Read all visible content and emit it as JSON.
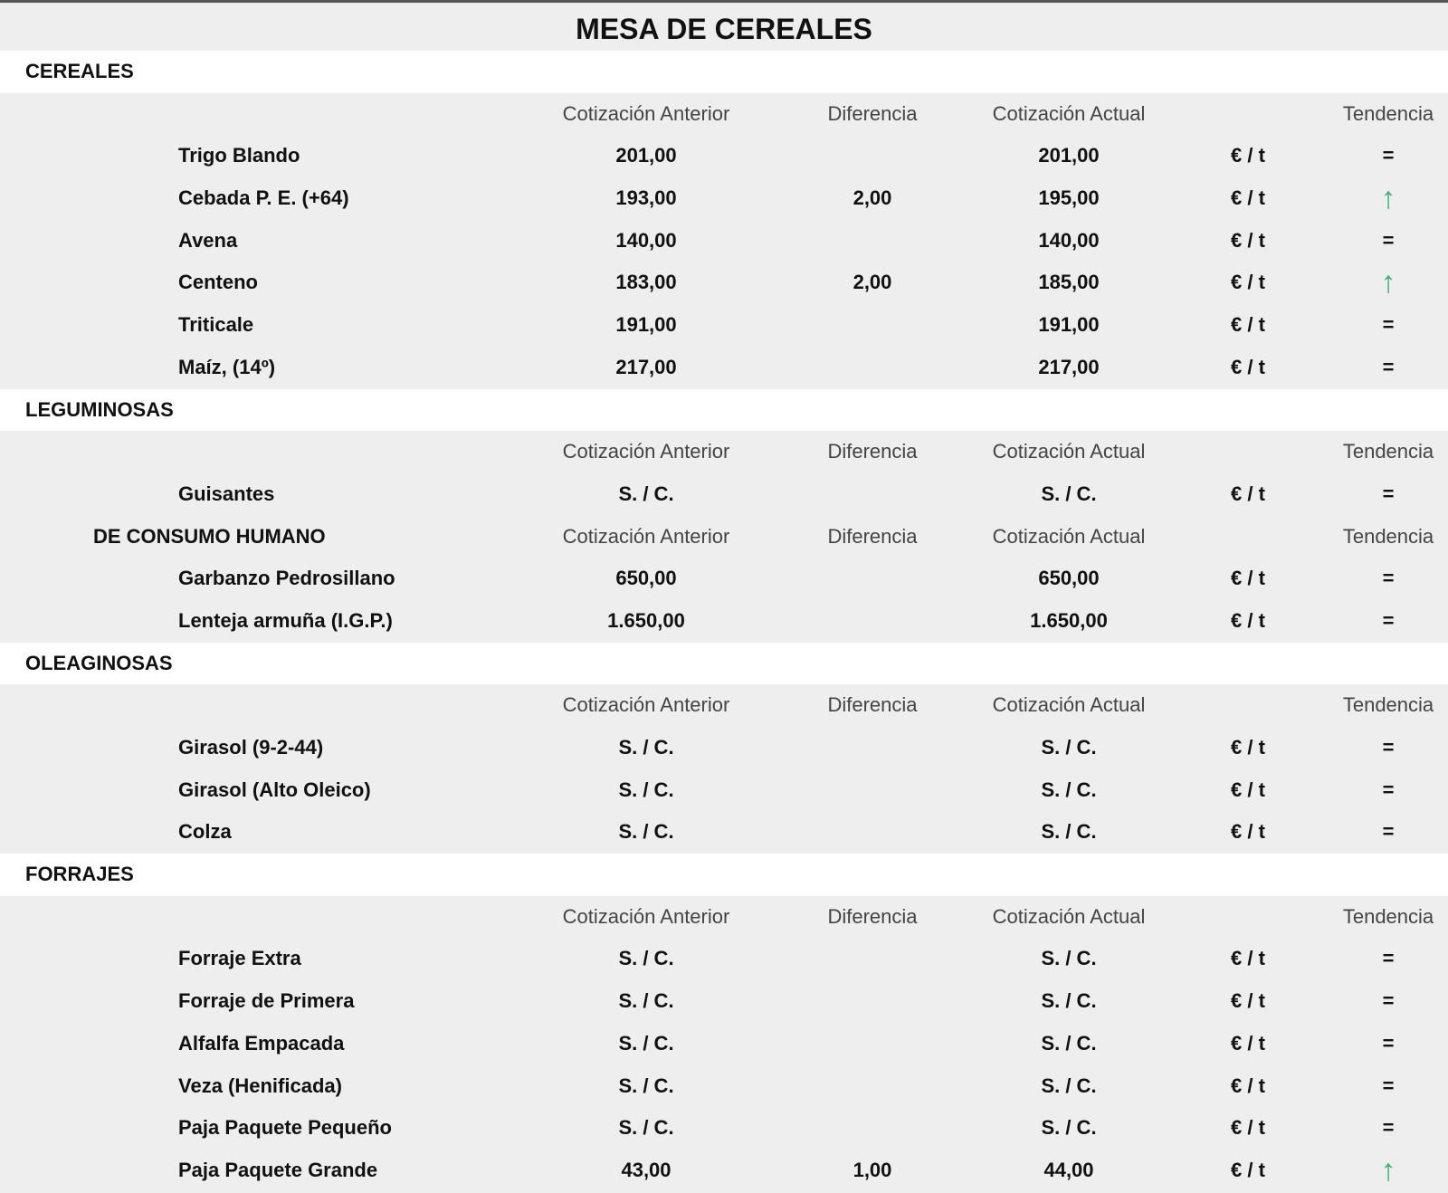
{
  "title": "MESA DE CEREALES",
  "sections": [
    {
      "title": "CEREALES",
      "groups": [
        {
          "headers": [
            "Cotización Anterior",
            "Diferencia",
            "Cotización Actual",
            "Tendencia"
          ],
          "rows": [
            {
              "name": "Trigo Blando",
              "anterior": "201,00",
              "actual": "201,00",
              "unit": "€ / t",
              "trend": "="
            },
            {
              "name": "Cebada P. E. (+64)",
              "anterior": "193,00",
              "diferencia": "2,00",
              "actual": "195,00",
              "unit": "€ / t",
              "trend": "↑"
            },
            {
              "name": "Avena",
              "anterior": "140,00",
              "actual": "140,00",
              "unit": "€ / t",
              "trend": "="
            },
            {
              "name": "Centeno",
              "anterior": "183,00",
              "diferencia": "2,00",
              "actual": "185,00",
              "unit": "€ / t",
              "trend": "↑"
            },
            {
              "name": "Triticale",
              "anterior": "191,00",
              "actual": "191,00",
              "unit": "€ / t",
              "trend": "="
            },
            {
              "name": "Maíz, (14º)",
              "anterior": "217,00",
              "actual": "217,00",
              "unit": "€ / t",
              "trend": "="
            }
          ]
        }
      ]
    },
    {
      "title": "LEGUMINOSAS",
      "groups": [
        {
          "headers": [
            "Cotización Anterior",
            "Diferencia",
            "Cotización Actual",
            "Tendencia"
          ],
          "rows": [
            {
              "name": "Guisantes",
              "anterior": "S. / C.",
              "actual": "S. / C.",
              "unit": "€ / t",
              "trend": "="
            }
          ]
        },
        {
          "label": "DE CONSUMO HUMANO",
          "headers": [
            "Cotización Anterior",
            "Diferencia",
            "Cotización Actual",
            "Tendencia"
          ],
          "rows": [
            {
              "name": "Garbanzo Pedrosillano",
              "anterior": "650,00",
              "actual": "650,00",
              "unit": "€ / t",
              "trend": "="
            },
            {
              "name": "Lenteja armuña (I.G.P.)",
              "anterior": "1.650,00",
              "actual": "1.650,00",
              "unit": "€ / t",
              "trend": "="
            }
          ]
        }
      ]
    },
    {
      "title": "OLEAGINOSAS",
      "groups": [
        {
          "headers": [
            "Cotización Anterior",
            "Diferencia",
            "Cotización Actual",
            "Tendencia"
          ],
          "rows": [
            {
              "name": "Girasol (9-2-44)",
              "anterior": "S. / C.",
              "actual": "S. / C.",
              "unit": "€ / t",
              "trend": "="
            },
            {
              "name": "Girasol (Alto Oleico)",
              "anterior": "S. / C.",
              "actual": "S. / C.",
              "unit": "€ / t",
              "trend": "="
            },
            {
              "name": "Colza",
              "anterior": "S. / C.",
              "actual": "S. / C.",
              "unit": "€ / t",
              "trend": "="
            }
          ]
        }
      ]
    },
    {
      "title": "FORRAJES",
      "groups": [
        {
          "headers": [
            "Cotización Anterior",
            "Diferencia",
            "Cotización Actual",
            "Tendencia"
          ],
          "rows": [
            {
              "name": "Forraje Extra",
              "anterior": "S. / C.",
              "actual": "S. / C.",
              "unit": "€ / t",
              "trend": "="
            },
            {
              "name": "Forraje de Primera",
              "anterior": "S. / C.",
              "actual": "S. / C.",
              "unit": "€ / t",
              "trend": "="
            },
            {
              "name": "Alfalfa Empacada",
              "anterior": "S. / C.",
              "actual": "S. / C.",
              "unit": "€ / t",
              "trend": "="
            },
            {
              "name": "Veza (Henificada)",
              "anterior": "S. / C.",
              "actual": "S. / C.",
              "unit": "€ / t",
              "trend": "="
            },
            {
              "name": "Paja Paquete Pequeño",
              "anterior": "S. / C.",
              "actual": "S. / C.",
              "unit": "€ / t",
              "trend": "="
            },
            {
              "name": "Paja Paquete Grande",
              "anterior": "43,00",
              "diferencia": "1,00",
              "actual": "44,00",
              "unit": "€ / t",
              "trend": "↑"
            }
          ]
        }
      ]
    }
  ]
}
